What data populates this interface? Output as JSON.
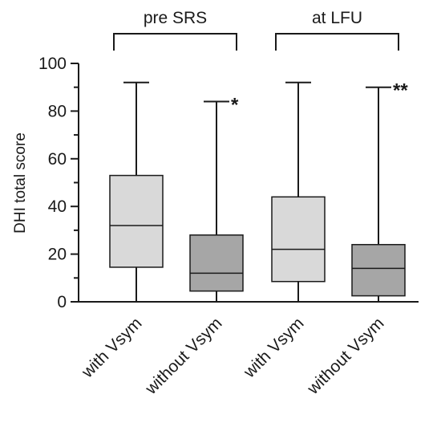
{
  "chart_data": {
    "type": "box",
    "ylabel": "DHI total score",
    "ylim": [
      0,
      100
    ],
    "y_ticks": [
      0,
      20,
      40,
      60,
      80,
      100
    ],
    "y_tick_labels": [
      "0",
      "20",
      "40",
      "60",
      "80",
      "100"
    ],
    "y_minor_step": 10,
    "groups": [
      {
        "label": "pre SRS",
        "members": [
          0,
          1
        ]
      },
      {
        "label": "at LFU",
        "members": [
          2,
          3
        ]
      }
    ],
    "boxes": [
      {
        "label": "with Vsym",
        "min": 0,
        "q1": 14.5,
        "median": 32,
        "q3": 53,
        "max": 92,
        "color": "#d9d9d9",
        "significance": ""
      },
      {
        "label": "without Vsym",
        "min": 0,
        "q1": 4.5,
        "median": 12,
        "q3": 28,
        "max": 84,
        "color": "#a6a6a6",
        "significance": "*"
      },
      {
        "label": "with Vsym",
        "min": 0,
        "q1": 8.5,
        "median": 22,
        "q3": 44,
        "max": 92,
        "color": "#d9d9d9",
        "significance": ""
      },
      {
        "label": "without Vsym",
        "min": 0,
        "q1": 2.5,
        "median": 14,
        "q3": 24,
        "max": 90,
        "color": "#a6a6a6",
        "significance": "**"
      }
    ]
  }
}
